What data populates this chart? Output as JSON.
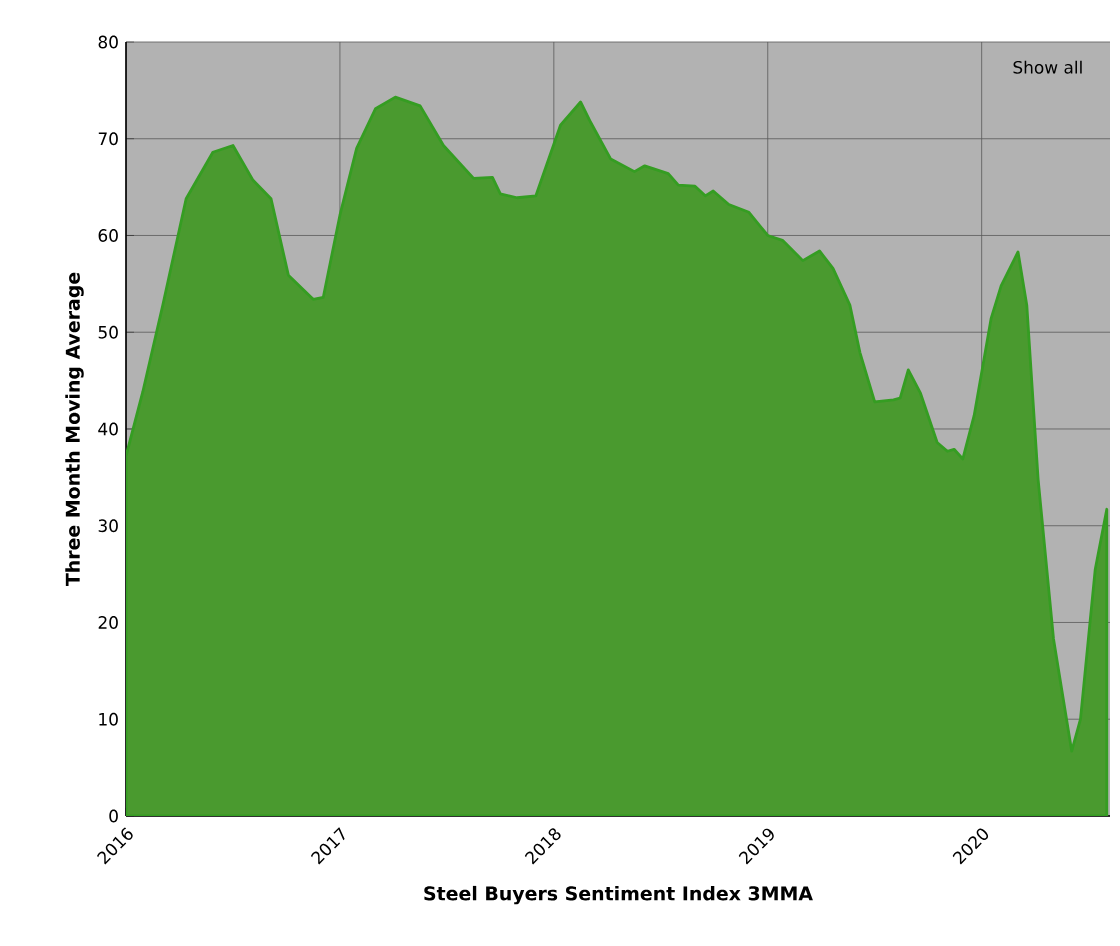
{
  "chart_data": {
    "type": "area",
    "xlabel": "Steel Buyers Sentiment Index 3MMA",
    "ylabel": "Three Month Moving Average",
    "annotations": [
      "Show all"
    ],
    "x": [
      2016.0,
      2016.078,
      2016.172,
      2016.281,
      2016.406,
      2016.5,
      2016.594,
      2016.678,
      2016.759,
      2016.875,
      2016.922,
      2017.0,
      2017.078,
      2017.166,
      2017.259,
      2017.375,
      2017.484,
      2017.625,
      2017.713,
      2017.75,
      2017.828,
      2017.916,
      2018.031,
      2018.125,
      2018.172,
      2018.266,
      2018.377,
      2018.425,
      2018.535,
      2018.582,
      2018.66,
      2018.708,
      2018.745,
      2018.818,
      2018.912,
      2019.0,
      2019.069,
      2019.164,
      2019.242,
      2019.305,
      2019.384,
      2019.431,
      2019.5,
      2019.588,
      2019.619,
      2019.657,
      2019.714,
      2019.792,
      2019.84,
      2019.871,
      2019.912,
      2019.965,
      2020.044,
      2020.091,
      2020.17,
      2020.211,
      2020.264,
      2020.336,
      2020.421,
      2020.462,
      2020.531,
      2020.585
    ],
    "series": [
      {
        "color": "#4a9a2f",
        "values": [
          37.2,
          43.8,
          52.8,
          63.8,
          68.6,
          69.3,
          65.7,
          63.8,
          55.9,
          53.4,
          53.6,
          62.1,
          69,
          73.1,
          74.3,
          73.4,
          69.3,
          65.9,
          66,
          64.3,
          63.9,
          64.1,
          71.4,
          73.8,
          71.7,
          67.9,
          66.6,
          67.2,
          66.4,
          65.2,
          65.1,
          64.1,
          64.6,
          63.2,
          62.4,
          60,
          59.5,
          57.4,
          58.4,
          56.6,
          52.8,
          47.9,
          42.8,
          43,
          43.2,
          46.1,
          43.7,
          38.6,
          37.7,
          37.9,
          36.9,
          41.4,
          51.4,
          54.8,
          58.3,
          52.8,
          34.8,
          18.3,
          6.7,
          10,
          25.5,
          31.7
        ]
      }
    ],
    "xlim": [
      2016,
      2020.6
    ],
    "ylim": [
      0,
      80
    ],
    "xticks": [
      2016,
      2017,
      2018,
      2019,
      2020
    ],
    "yticks": [
      0,
      10,
      20,
      30,
      40,
      50,
      60,
      70,
      80
    ],
    "grid": true
  }
}
